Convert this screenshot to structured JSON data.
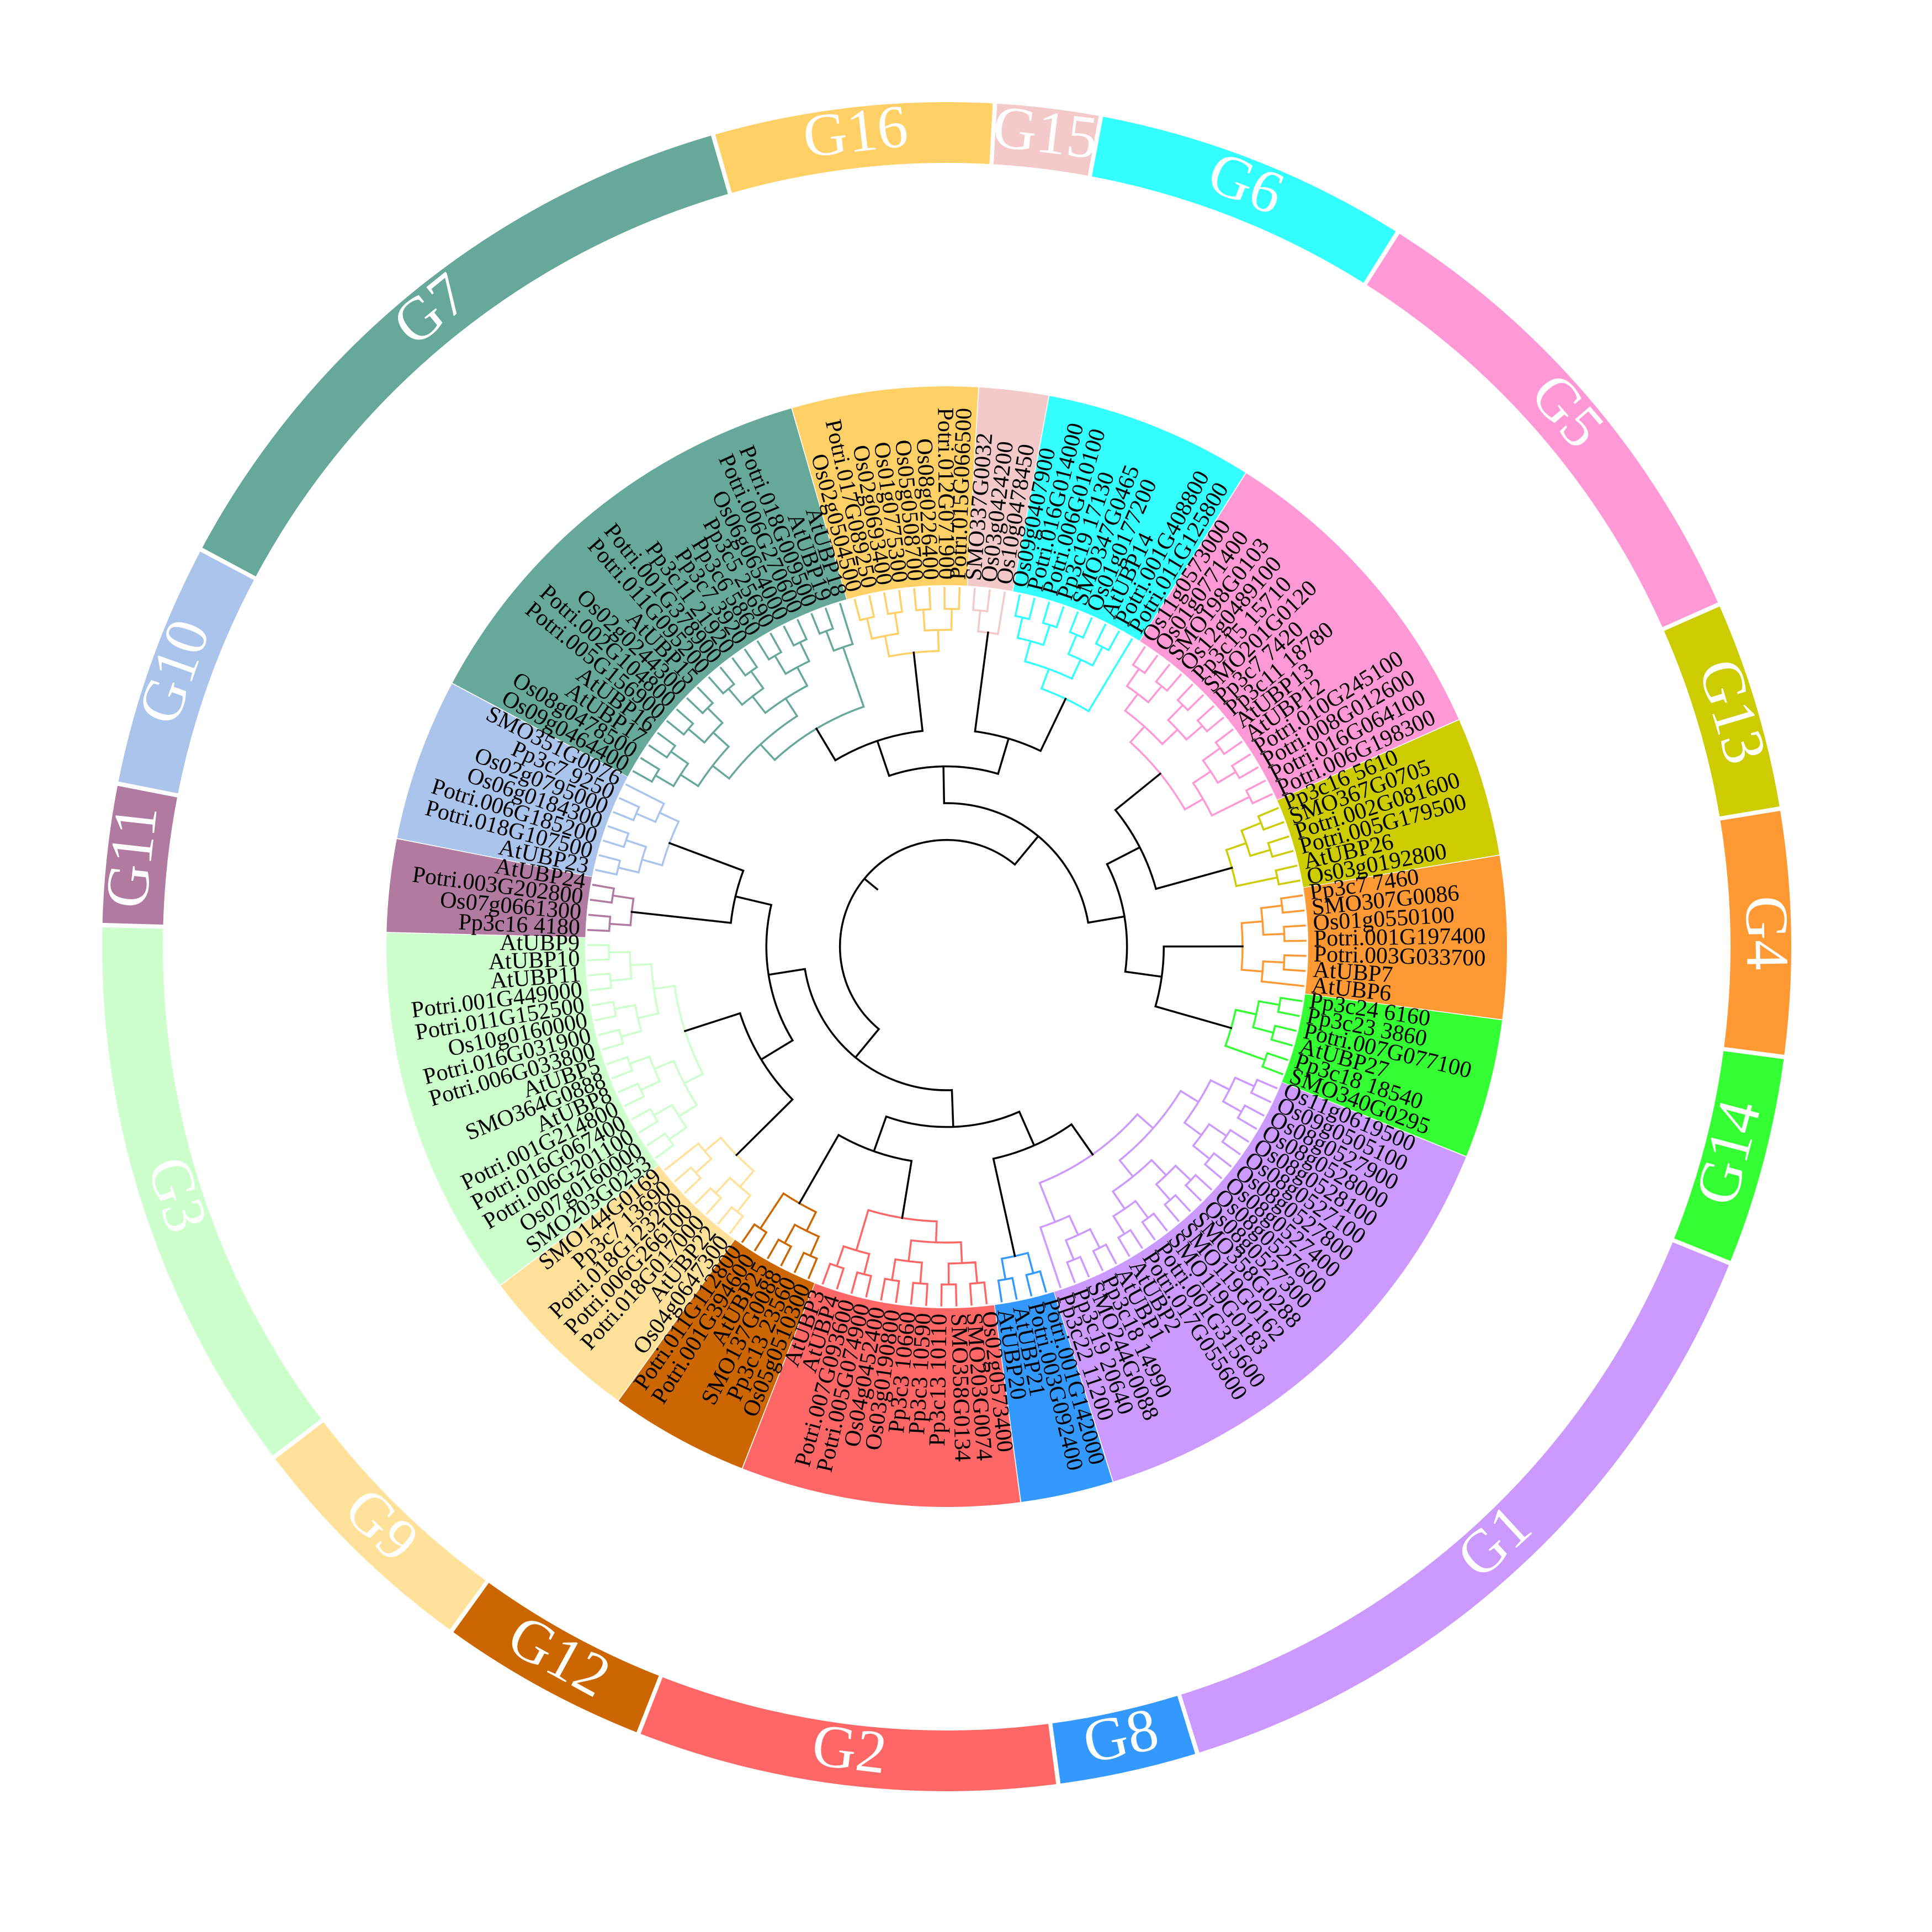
{
  "groups": [
    {
      "name": "G1",
      "color": "#cc99ff",
      "leaves": [
        "Os11g0619500",
        "Os09g0505100",
        "Os08g0527900",
        "Os08g0528000",
        "Os08g0528100",
        "Os08g0527100",
        "Os08g0527800",
        "Os08g0527400",
        "Os08g0527600",
        "Os08g0527300",
        "SMO358G0288",
        "SMO119G0162",
        "SMO119G0183",
        "Potri.001G315600",
        "Potri.017G055600",
        "AtUBP2",
        "AtUBP1",
        "Pp3c18_14990",
        "SMO244G0088",
        "Pp3c19_20640",
        "Pp3c22_11200"
      ]
    },
    {
      "name": "G8",
      "color": "#3399ff",
      "leaves": [
        "Potri.001G142000",
        "Potri.003G092400",
        "AtUBP21",
        "AtUBP20"
      ]
    },
    {
      "name": "G2",
      "color": "#ff6666",
      "leaves": [
        "Os02g0573400",
        "SMO203G0074",
        "SMO358G0134",
        "Pp3c13_10110",
        "Pp3c3_10590",
        "Pp3c3_10660",
        "Os03g0190800",
        "Os04g0452400",
        "Potri.005G074900",
        "Potri.007G093600",
        "AtUBP4",
        "AtUBP3"
      ]
    },
    {
      "name": "G12",
      "color": "#cc6600",
      "leaves": [
        "Os05g0510300",
        "Pp3c13_23560",
        "SMO137G0088",
        "AtUBP25",
        "Potri.001G394600",
        "Potri.011G112800"
      ]
    },
    {
      "name": "G9",
      "color": "#ffe199",
      "leaves": [
        "Os04g0647300",
        "AtUBP22",
        "Potri.018G017000",
        "Potri.006G266100",
        "Potri.018G123200",
        "Pp3c7_13690",
        "SMO144G0169"
      ]
    },
    {
      "name": "G3",
      "color": "#ccffcc",
      "leaves": [
        "SMO203G0253",
        "Os07g0160000",
        "Potri.006G201100",
        "Potri.016G067400",
        "Potri.001G214800",
        "AtUBP8",
        "SMO364G0888",
        "AtUBP5",
        "Potri.006G033800",
        "Potri.016G031900",
        "Os10g0160000",
        "Potri.011G152500",
        "Potri.001G449000",
        "AtUBP11",
        "AtUBP10",
        "AtUBP9"
      ]
    },
    {
      "name": "G11",
      "color": "#b07aa1",
      "leaves": [
        "Pp3c16_4180",
        "Os07g0661300",
        "Potri.003G202800",
        "AtUBP24"
      ]
    },
    {
      "name": "G10",
      "color": "#aac4ec",
      "leaves": [
        "AtUBP23",
        "Potri.018G107500",
        "Potri.006G185200",
        "Os06g0184300",
        "Os02g0795000",
        "Pp3c7_9250",
        "SMO351G0076"
      ]
    },
    {
      "name": "G7",
      "color": "#66a89a",
      "leaves": [
        "Os09g0464400",
        "Os08g0478500",
        "AtUBP17",
        "AtUBP16",
        "Potri.005G156900",
        "Potri.002G104800",
        "Os02g0244300",
        "AtUBP15",
        "Potri.011G095200",
        "Potri.001G378900",
        "Pp3c11_21920",
        "Pp3c7_3920",
        "Pp3c6_5860",
        "Pp3c5_25690",
        "Os06g0654000",
        "Potri.006G270600",
        "Potri.018G009500",
        "AtUBP19",
        "AtUBP18"
      ]
    },
    {
      "name": "G16",
      "color": "#ffd066",
      "leaves": [
        "Os02g0504500",
        "Potri.017G089250",
        "Os02g0693400",
        "Os01g0775300",
        "Os05g0508700",
        "Os08g0226400",
        "Potri.012G071900",
        "Potri.015G066500"
      ]
    },
    {
      "name": "G15",
      "color": "#f4c9c9",
      "leaves": [
        "SMO337G0032",
        "Os03g0424200",
        "Os10g0478450"
      ]
    },
    {
      "name": "G6",
      "color": "#33ffff",
      "leaves": [
        "Os09g0407900",
        "Potri.016G014000",
        "Potri.006G010100",
        "Pp3c19_17130",
        "SMO347G0465",
        "Os01g0177200",
        "AtUBP14",
        "Potri.001G408800",
        "Potri.011G125800"
      ]
    },
    {
      "name": "G5",
      "color": "#ff99d6",
      "leaves": [
        "Os11g0573000",
        "Os01g0771400",
        "SMO198G0103",
        "Os12g0489100",
        "Pp3c15_15710",
        "SMO201G0120",
        "Pp3c7_7420",
        "Pp3c11_18780",
        "AtUBP13",
        "AtUBP12",
        "Potri.010G245100",
        "Potri.008G012600",
        "Potri.016G064100",
        "Potri.006G198300"
      ]
    },
    {
      "name": "G13",
      "color": "#cccc00",
      "leaves": [
        "Pp3c16_5610",
        "SMO367G0705",
        "Potri.002G081600",
        "Potri.005G179500",
        "AtUBP26",
        "Os03g0192800"
      ]
    },
    {
      "name": "G4",
      "color": "#ff9933",
      "leaves": [
        "Pp3c7_7460",
        "SMO307G0086",
        "Os01g0550100",
        "Potri.001G197400",
        "Potri.003G033700",
        "AtUBP7",
        "AtUBP6"
      ]
    },
    {
      "name": "G14",
      "color": "#33ff33",
      "leaves": [
        "Pp3c24_6160",
        "Pp3c23_3860",
        "Potri.007G077100",
        "AtUBP27",
        "Pp3c18_18540",
        "SMO340G0295"
      ]
    }
  ]
}
